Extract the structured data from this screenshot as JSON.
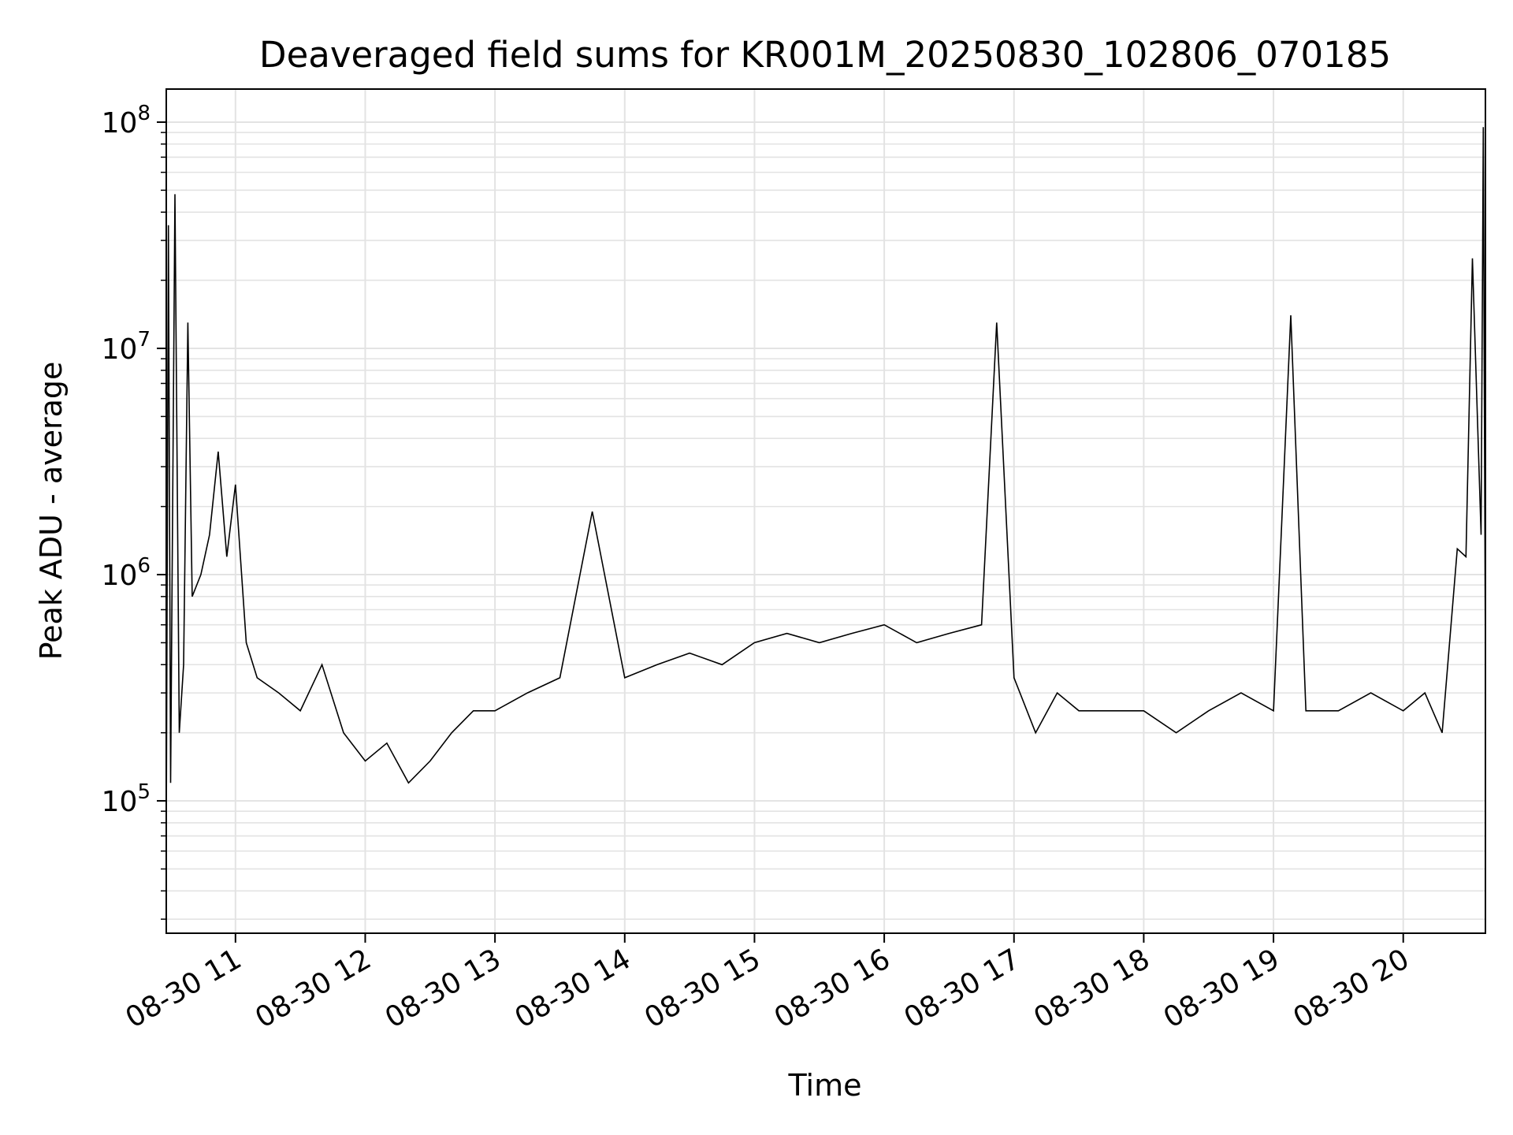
{
  "chart_data": {
    "type": "line",
    "title": "Deaveraged field sums for KR001M_20250830_102806_070185",
    "xlabel": "Time",
    "ylabel": "Peak ADU - average",
    "y_scale": "log",
    "ylim": [
      26000,
      140000000
    ],
    "xlim": [
      "2025-08-30 10:28",
      "2025-08-30 20:38"
    ],
    "grid": true,
    "line_color": "#000000",
    "x_ticks": [
      {
        "value": "2025-08-30 11:00",
        "label": "08-30 11"
      },
      {
        "value": "2025-08-30 12:00",
        "label": "08-30 12"
      },
      {
        "value": "2025-08-30 13:00",
        "label": "08-30 13"
      },
      {
        "value": "2025-08-30 14:00",
        "label": "08-30 14"
      },
      {
        "value": "2025-08-30 15:00",
        "label": "08-30 15"
      },
      {
        "value": "2025-08-30 16:00",
        "label": "08-30 16"
      },
      {
        "value": "2025-08-30 17:00",
        "label": "08-30 17"
      },
      {
        "value": "2025-08-30 18:00",
        "label": "08-30 18"
      },
      {
        "value": "2025-08-30 19:00",
        "label": "08-30 19"
      },
      {
        "value": "2025-08-30 20:00",
        "label": "08-30 20"
      }
    ],
    "y_ticks": [
      {
        "value": 100000,
        "base": "10",
        "exp": "5"
      },
      {
        "value": 1000000,
        "base": "10",
        "exp": "6"
      },
      {
        "value": 10000000,
        "base": "10",
        "exp": "7"
      },
      {
        "value": 100000000,
        "base": "10",
        "exp": "8"
      }
    ],
    "series": [
      {
        "x": [
          "2025-08-30 10:28",
          "2025-08-30 10:29",
          "2025-08-30 10:30",
          "2025-08-30 10:32",
          "2025-08-30 10:34",
          "2025-08-30 10:36",
          "2025-08-30 10:38",
          "2025-08-30 10:40",
          "2025-08-30 10:44",
          "2025-08-30 10:48",
          "2025-08-30 10:52",
          "2025-08-30 10:56",
          "2025-08-30 11:00",
          "2025-08-30 11:05",
          "2025-08-30 11:10",
          "2025-08-30 11:20",
          "2025-08-30 11:30",
          "2025-08-30 11:40",
          "2025-08-30 11:50",
          "2025-08-30 12:00",
          "2025-08-30 12:10",
          "2025-08-30 12:20",
          "2025-08-30 12:30",
          "2025-08-30 12:40",
          "2025-08-30 12:50",
          "2025-08-30 13:00",
          "2025-08-30 13:15",
          "2025-08-30 13:30",
          "2025-08-30 13:45",
          "2025-08-30 14:00",
          "2025-08-30 14:15",
          "2025-08-30 14:30",
          "2025-08-30 14:45",
          "2025-08-30 15:00",
          "2025-08-30 15:15",
          "2025-08-30 15:30",
          "2025-08-30 15:45",
          "2025-08-30 16:00",
          "2025-08-30 16:15",
          "2025-08-30 16:30",
          "2025-08-30 16:45",
          "2025-08-30 16:52",
          "2025-08-30 17:00",
          "2025-08-30 17:10",
          "2025-08-30 17:20",
          "2025-08-30 17:30",
          "2025-08-30 17:45",
          "2025-08-30 18:00",
          "2025-08-30 18:15",
          "2025-08-30 18:30",
          "2025-08-30 18:45",
          "2025-08-30 19:00",
          "2025-08-30 19:08",
          "2025-08-30 19:15",
          "2025-08-30 19:30",
          "2025-08-30 19:45",
          "2025-08-30 20:00",
          "2025-08-30 20:10",
          "2025-08-30 20:18",
          "2025-08-30 20:25",
          "2025-08-30 20:29",
          "2025-08-30 20:32",
          "2025-08-30 20:36",
          "2025-08-30 20:37",
          "2025-08-30 20:38"
        ],
        "y": [
          70000,
          35000000,
          120000,
          48000000,
          200000,
          400000,
          13000000,
          800000,
          1000000,
          1500000,
          3500000,
          1200000,
          2500000,
          500000,
          350000,
          300000,
          250000,
          400000,
          200000,
          150000,
          180000,
          120000,
          150000,
          200000,
          250000,
          250000,
          300000,
          350000,
          1900000,
          350000,
          400000,
          450000,
          400000,
          500000,
          550000,
          500000,
          550000,
          600000,
          500000,
          550000,
          600000,
          13000000,
          350000,
          200000,
          300000,
          250000,
          250000,
          250000,
          200000,
          250000,
          300000,
          250000,
          14000000,
          250000,
          250000,
          300000,
          250000,
          300000,
          200000,
          1300000,
          1200000,
          25000000,
          1500000,
          95000000,
          400000
        ]
      }
    ]
  }
}
